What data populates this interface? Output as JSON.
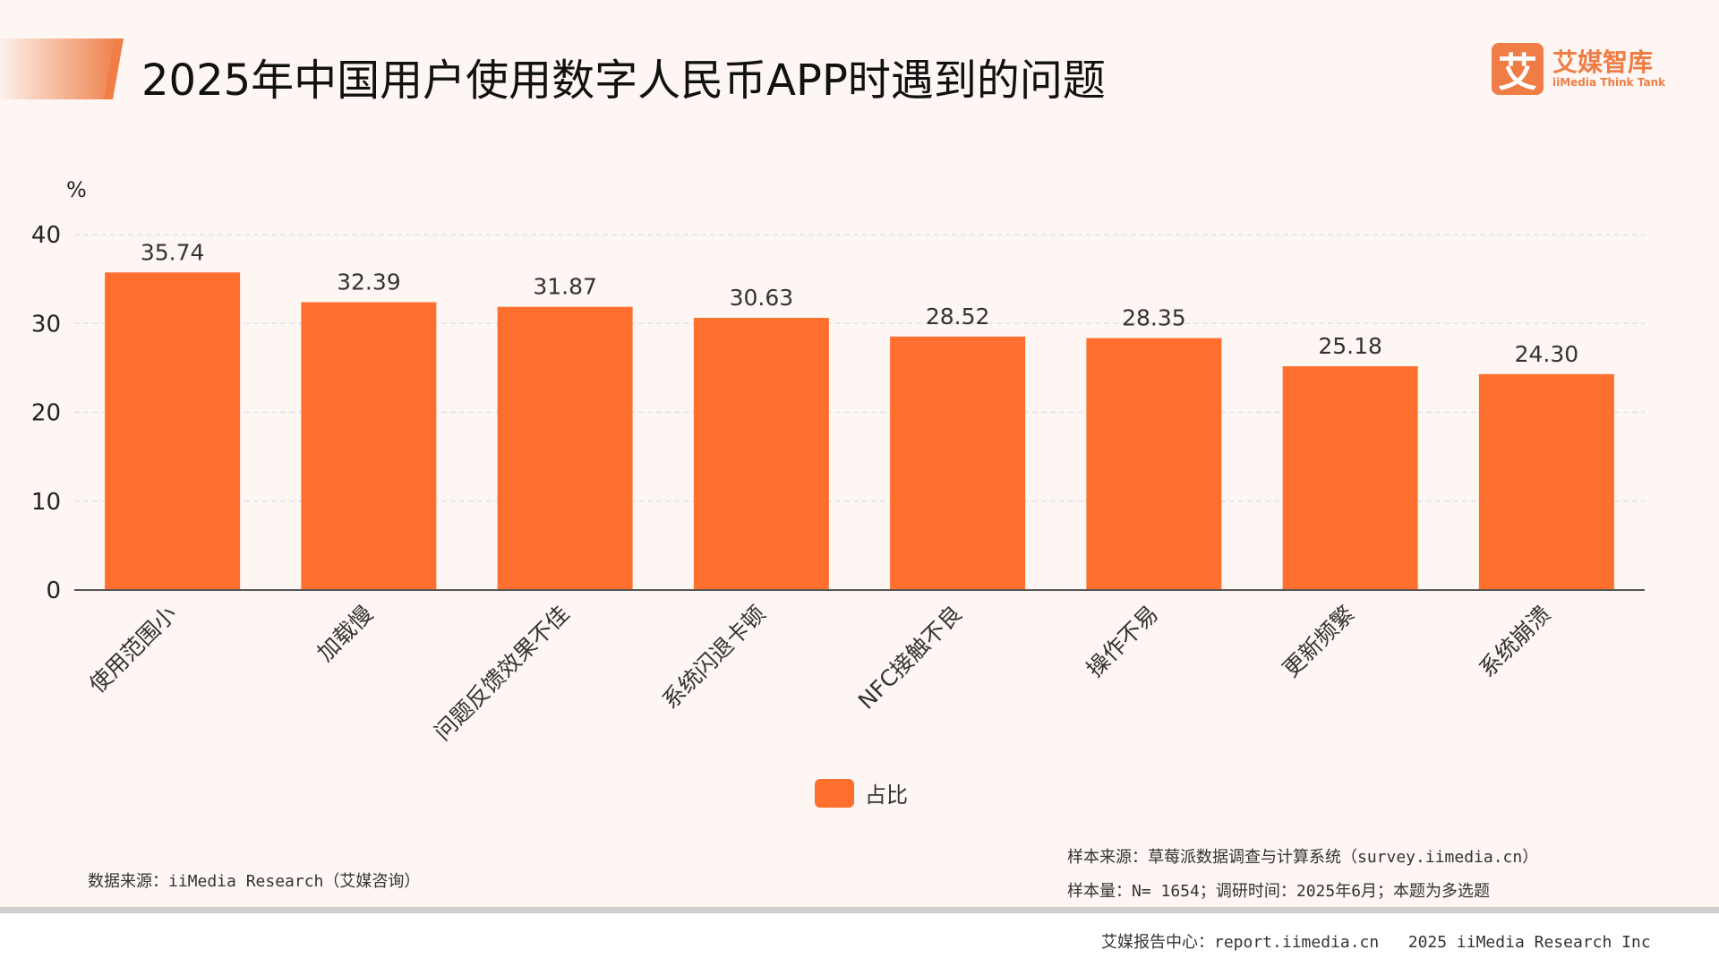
{
  "header": {
    "title": "2025年中国用户使用数字人民币APP时遇到的问题"
  },
  "logo": {
    "mark": "艾",
    "name_cn": "艾媒智库",
    "name_en": "iiMedia Think Tank"
  },
  "chart_data": {
    "type": "bar",
    "title": "2025年中国用户使用数字人民币APP时遇到的问题",
    "ylabel": "%",
    "xlabel": "",
    "ylim": [
      0,
      40
    ],
    "yticks": [
      0,
      10,
      20,
      30,
      40
    ],
    "grid": true,
    "legend_placement": "bottom",
    "categories": [
      "使用范围小",
      "加载慢",
      "问题反馈效果不佳",
      "系统闪退卡顿",
      "NFC接触不良",
      "操作不易",
      "更新频繁",
      "系统崩溃"
    ],
    "series": [
      {
        "name": "占比",
        "values": [
          35.74,
          32.39,
          31.87,
          30.63,
          28.52,
          28.35,
          25.18,
          24.3
        ],
        "labels": [
          "35.74",
          "32.39",
          "31.87",
          "30.63",
          "28.52",
          "28.35",
          "25.18",
          "24.30"
        ],
        "color": "#ff6f2e"
      }
    ]
  },
  "notes": {
    "data_source": "数据来源：iiMedia Research（艾媒咨询）",
    "sample_source": "样本来源：草莓派数据调查与计算系统（survey.iimedia.cn）",
    "sample_size": "样本量：N= 1654；调研时间：2025年6月；本题为多选题",
    "footer": "艾媒报告中心：report.iimedia.cn   2025 iiMedia Research Inc"
  }
}
